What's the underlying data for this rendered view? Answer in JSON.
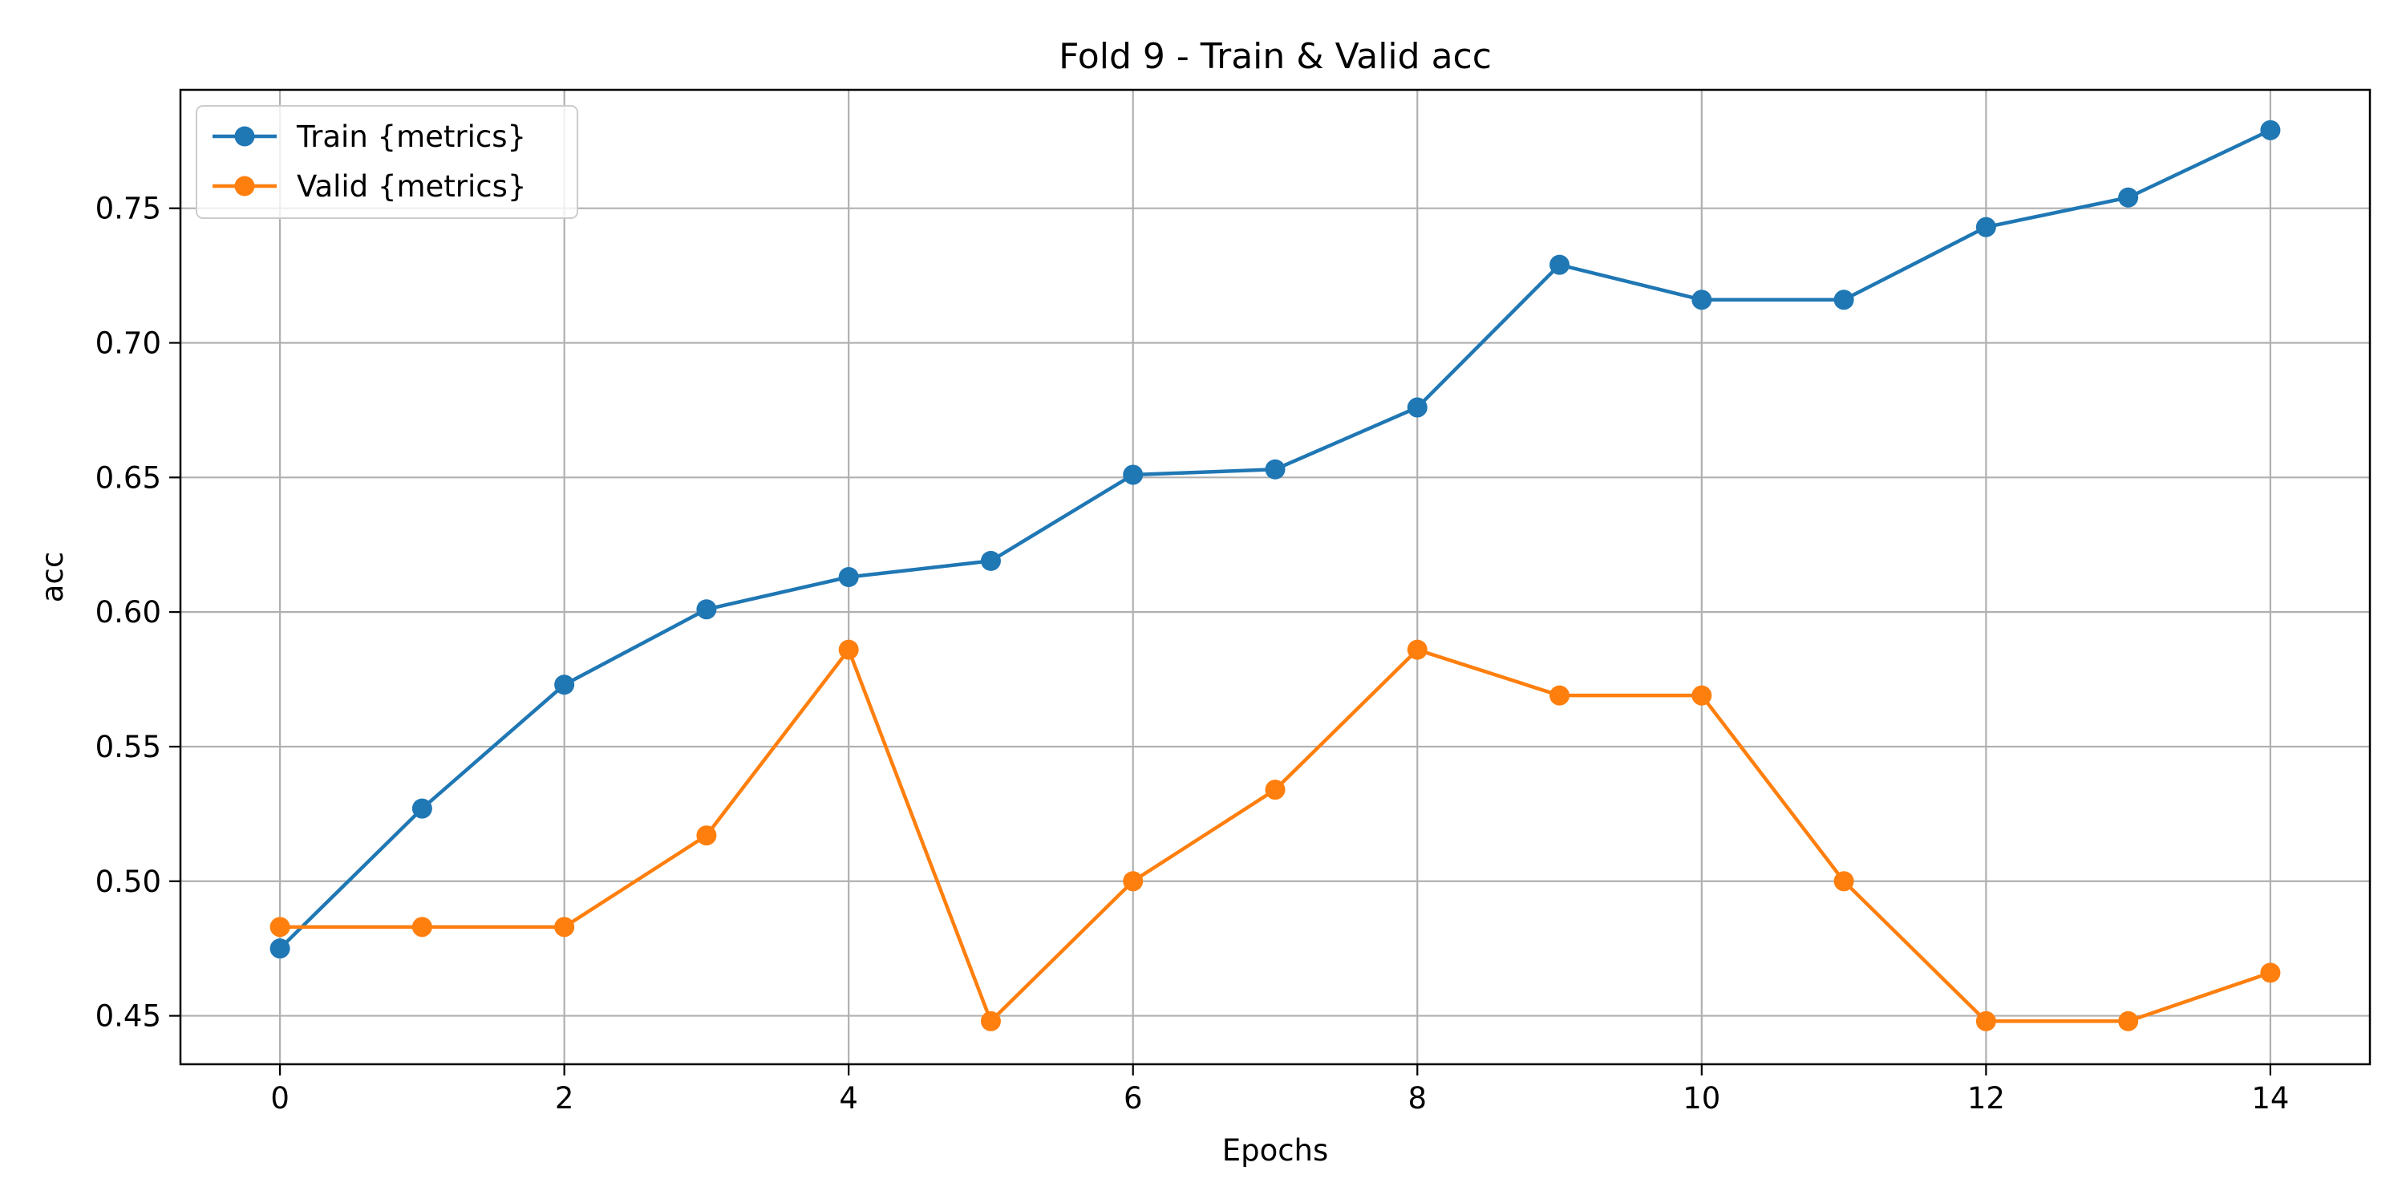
{
  "chart_data": {
    "type": "line",
    "title": "Fold 9 - Train & Valid acc",
    "xlabel": "Epochs",
    "ylabel": "acc",
    "x": [
      0,
      1,
      2,
      3,
      4,
      5,
      6,
      7,
      8,
      9,
      10,
      11,
      12,
      13,
      14
    ],
    "xlim": [
      -0.7,
      14.7
    ],
    "ylim": [
      0.432,
      0.794
    ],
    "x_ticks": [
      0,
      2,
      4,
      6,
      8,
      10,
      12,
      14
    ],
    "x_tick_labels": [
      "0",
      "2",
      "4",
      "6",
      "8",
      "10",
      "12",
      "14"
    ],
    "y_ticks": [
      0.45,
      0.5,
      0.55,
      0.6,
      0.65,
      0.7,
      0.75
    ],
    "y_tick_labels": [
      "0.45",
      "0.50",
      "0.55",
      "0.60",
      "0.65",
      "0.70",
      "0.75"
    ],
    "grid": true,
    "legend_position": "top-left",
    "series": [
      {
        "name": "Train {metrics}",
        "color": "#1f77b4",
        "values": [
          0.475,
          0.527,
          0.573,
          0.601,
          0.613,
          0.619,
          0.651,
          0.653,
          0.676,
          0.729,
          0.716,
          0.716,
          0.743,
          0.754,
          0.779
        ]
      },
      {
        "name": "Valid {metrics}",
        "color": "#ff7f0e",
        "values": [
          0.483,
          0.483,
          0.483,
          0.517,
          0.586,
          0.448,
          0.5,
          0.534,
          0.586,
          0.569,
          0.569,
          0.5,
          0.448,
          0.448,
          0.466
        ]
      }
    ]
  }
}
